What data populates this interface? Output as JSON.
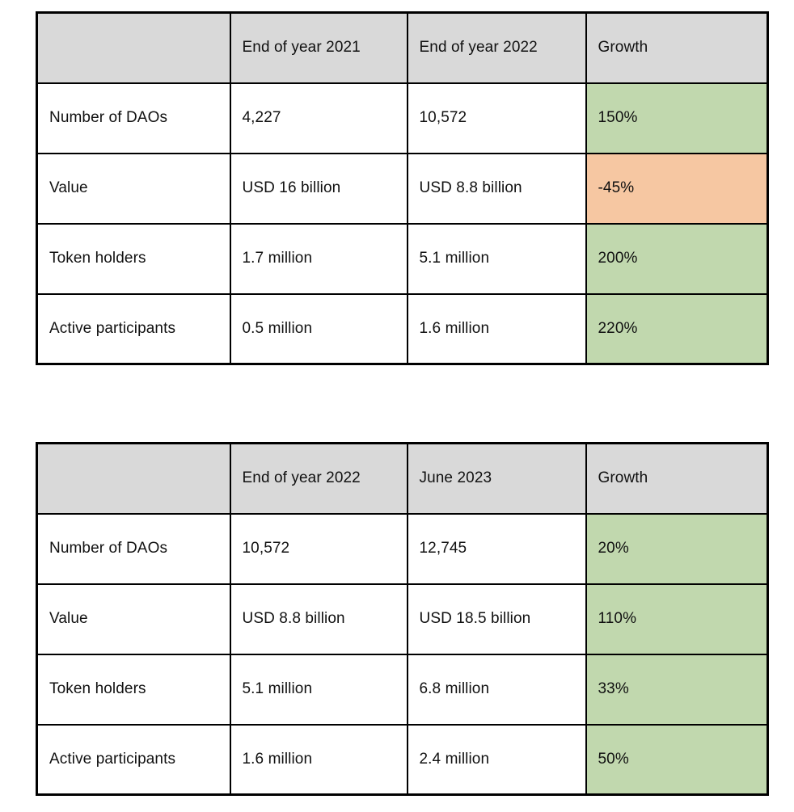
{
  "colors": {
    "header_bg": "#d9d9d9",
    "positive_bg": "#c1d8ae",
    "negative_bg": "#f6c7a2",
    "border": "#000000",
    "text": "#111111",
    "cell_bg": "#ffffff",
    "page_bg": "#ffffff"
  },
  "tables": [
    {
      "id": "dao-growth-2021-vs-2022",
      "columns": [
        "",
        "End of year 2021",
        "End of year 2022",
        "Growth"
      ],
      "rows": [
        {
          "label": "Number of DAOs",
          "col1": "4,227",
          "col2": "10,572",
          "growth": "150%",
          "growth_sentiment": "positive"
        },
        {
          "label": "Value",
          "col1": "USD 16 billion",
          "col2": "USD 8.8 billion",
          "growth": "-45%",
          "growth_sentiment": "negative"
        },
        {
          "label": "Token holders",
          "col1": "1.7 million",
          "col2": "5.1 million",
          "growth": "200%",
          "growth_sentiment": "positive"
        },
        {
          "label": "Active participants",
          "col1": "0.5 million",
          "col2": "1.6 million",
          "growth": "220%",
          "growth_sentiment": "positive"
        }
      ]
    },
    {
      "id": "dao-growth-2022-vs-june-2023",
      "columns": [
        "",
        "End of year 2022",
        "June 2023",
        "Growth"
      ],
      "rows": [
        {
          "label": "Number of DAOs",
          "col1": "10,572",
          "col2": "12,745",
          "growth": "20%",
          "growth_sentiment": "positive"
        },
        {
          "label": "Value",
          "col1": "USD 8.8 billion",
          "col2": "USD 18.5 billion",
          "growth": "110%",
          "growth_sentiment": "positive"
        },
        {
          "label": "Token holders",
          "col1": "5.1 million",
          "col2": "6.8 million",
          "growth": "33%",
          "growth_sentiment": "positive"
        },
        {
          "label": "Active participants",
          "col1": "1.6 million",
          "col2": "2.4 million",
          "growth": "50%",
          "growth_sentiment": "positive"
        }
      ]
    }
  ]
}
